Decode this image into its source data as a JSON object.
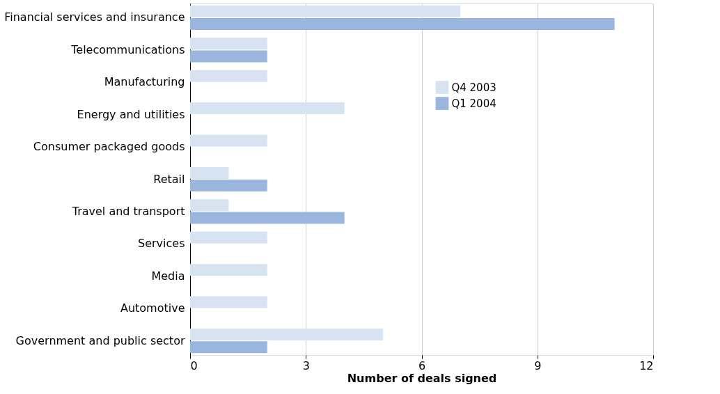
{
  "chart_data": {
    "type": "bar",
    "orientation": "horizontal",
    "xlabel": "Number of deals signed",
    "categories": [
      "Financial services and insurance",
      "Telecommunications",
      "Manufacturing",
      "Energy and utilities",
      "Consumer packaged goods",
      "Retail",
      "Travel and transport",
      "Services",
      "Media",
      "Automotive",
      "Government and public sector"
    ],
    "series": [
      {
        "name": "Q4 2003",
        "color": "#d7e3f0",
        "values": [
          7,
          2,
          2,
          4,
          2,
          1,
          1,
          2,
          2,
          2,
          5
        ]
      },
      {
        "name": "Q1 2004",
        "color": "#9bb6de",
        "values": [
          11,
          2,
          null,
          null,
          null,
          2,
          4,
          null,
          null,
          null,
          2
        ]
      }
    ],
    "xlim": [
      0,
      12
    ],
    "xticks": [
      0,
      3,
      6,
      9,
      12
    ],
    "grid": "x",
    "legend": "top right"
  }
}
